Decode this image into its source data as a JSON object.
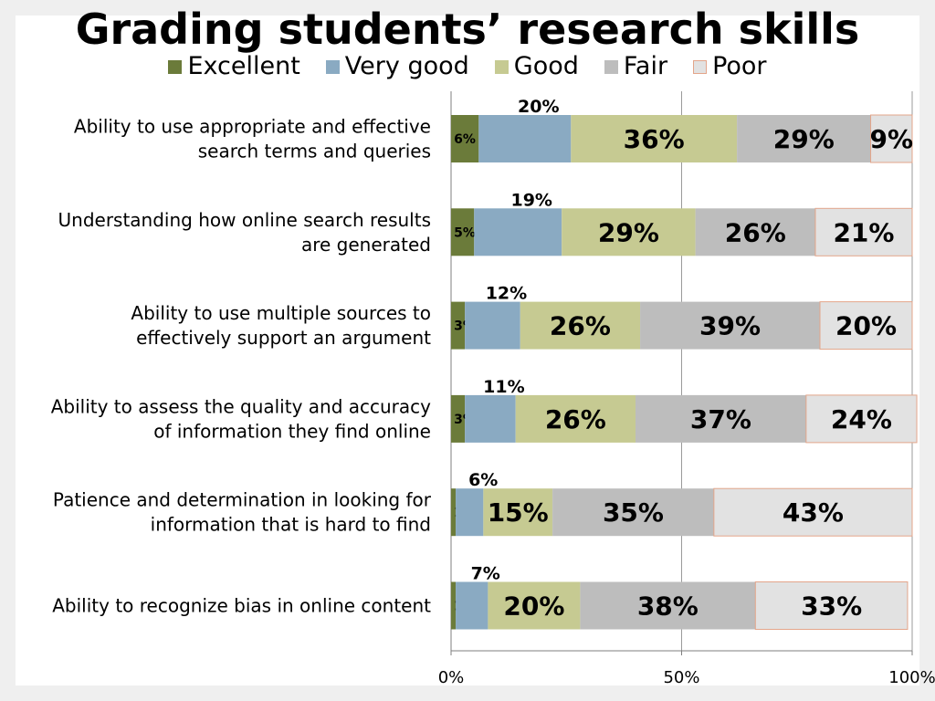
{
  "chart_data": {
    "type": "bar",
    "orientation": "horizontal",
    "stacked": true,
    "title": "Grading students’ research skills",
    "categories": [
      [
        "Ability to use appropriate and effective",
        "search terms and queries"
      ],
      [
        "Understanding how online search results",
        "are generated"
      ],
      [
        "Ability to use multiple sources to",
        "effectively support an argument"
      ],
      [
        "Ability to assess the quality and accuracy",
        "of information they find online"
      ],
      [
        "Patience and determination in looking for",
        "information that is hard to find"
      ],
      [
        "Ability to recognize bias in online content"
      ]
    ],
    "series": [
      {
        "name": "Excellent",
        "color": "#6b7b3a",
        "values": [
          6,
          5,
          3,
          3,
          1,
          1
        ]
      },
      {
        "name": "Very good",
        "color": "#8aaac2",
        "values": [
          20,
          19,
          12,
          11,
          6,
          7
        ]
      },
      {
        "name": "Good",
        "color": "#c6ca92",
        "values": [
          36,
          29,
          26,
          26,
          15,
          20
        ]
      },
      {
        "name": "Fair",
        "color": "#bdbdbd",
        "values": [
          29,
          26,
          39,
          37,
          35,
          38
        ]
      },
      {
        "name": "Poor",
        "color": "#e2e2e2",
        "values": [
          9,
          21,
          20,
          24,
          43,
          33
        ]
      }
    ],
    "xlim": [
      0,
      100
    ],
    "x_ticks": [
      "0%",
      "50%",
      "100%"
    ],
    "legend_position": "top",
    "grid": "vertical at 50% and 100%"
  }
}
